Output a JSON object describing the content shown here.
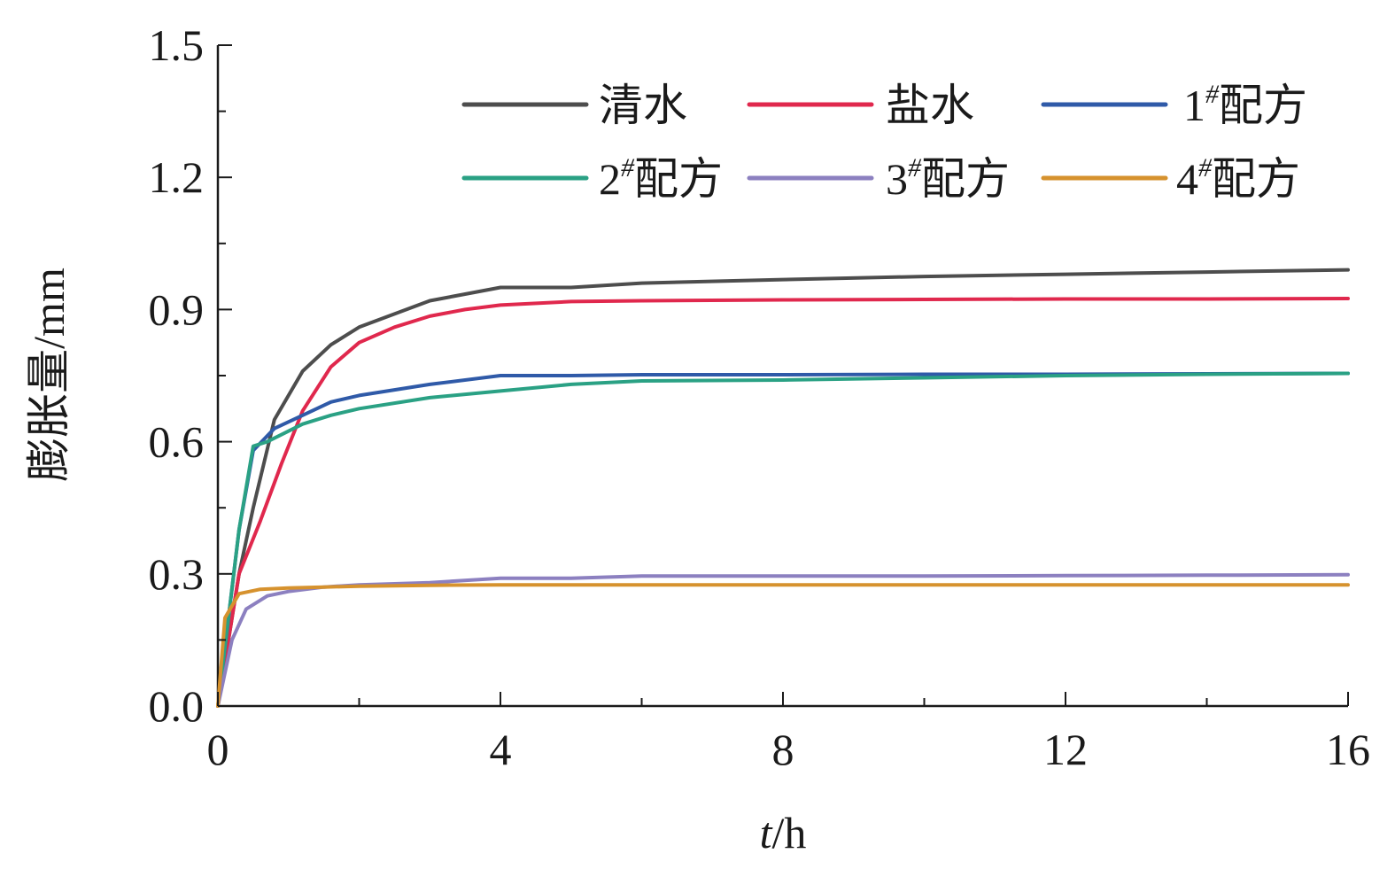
{
  "chart_data": {
    "type": "line",
    "xlabel": "h",
    "xlabel_italic_prefix": "t",
    "xlabel_sep": "/",
    "ylabel": "膨胀量/mm",
    "xlim": [
      0,
      16
    ],
    "ylim": [
      0,
      1.5
    ],
    "x_ticks": [
      "0",
      "4",
      "8",
      "12",
      "16"
    ],
    "y_ticks": [
      "0.0",
      "0.3",
      "0.6",
      "0.9",
      "1.2",
      "1.5"
    ],
    "grid": false,
    "legend_position": "top-right",
    "series": [
      {
        "name": "清水",
        "sup": "",
        "suffix": "",
        "color": "#4d4d4d",
        "points": [
          [
            0,
            0
          ],
          [
            0.3,
            0.3
          ],
          [
            0.5,
            0.45
          ],
          [
            0.8,
            0.65
          ],
          [
            1.2,
            0.76
          ],
          [
            1.6,
            0.82
          ],
          [
            2,
            0.86
          ],
          [
            2.5,
            0.89
          ],
          [
            3,
            0.92
          ],
          [
            3.5,
            0.935
          ],
          [
            4,
            0.95
          ],
          [
            5,
            0.95
          ],
          [
            6,
            0.96
          ],
          [
            8,
            0.968
          ],
          [
            10,
            0.975
          ],
          [
            12,
            0.98
          ],
          [
            14,
            0.985
          ],
          [
            16,
            0.99
          ]
        ]
      },
      {
        "name": "盐水",
        "sup": "",
        "suffix": "",
        "color": "#e0284d",
        "points": [
          [
            0,
            0
          ],
          [
            0.3,
            0.3
          ],
          [
            0.6,
            0.42
          ],
          [
            0.9,
            0.55
          ],
          [
            1.2,
            0.67
          ],
          [
            1.6,
            0.77
          ],
          [
            2,
            0.825
          ],
          [
            2.5,
            0.86
          ],
          [
            3,
            0.885
          ],
          [
            3.5,
            0.9
          ],
          [
            4,
            0.91
          ],
          [
            5,
            0.918
          ],
          [
            6,
            0.92
          ],
          [
            8,
            0.922
          ],
          [
            10,
            0.923
          ],
          [
            12,
            0.924
          ],
          [
            14,
            0.924
          ],
          [
            16,
            0.925
          ]
        ]
      },
      {
        "name": "1",
        "sup": "#",
        "suffix": "配方",
        "color": "#2f5aa8",
        "points": [
          [
            0,
            0
          ],
          [
            0.3,
            0.4
          ],
          [
            0.5,
            0.58
          ],
          [
            0.8,
            0.63
          ],
          [
            1.2,
            0.66
          ],
          [
            1.6,
            0.69
          ],
          [
            2,
            0.705
          ],
          [
            3,
            0.73
          ],
          [
            4,
            0.75
          ],
          [
            5,
            0.75
          ],
          [
            6,
            0.752
          ],
          [
            8,
            0.752
          ],
          [
            10,
            0.753
          ],
          [
            12,
            0.753
          ],
          [
            14,
            0.754
          ],
          [
            16,
            0.755
          ]
        ]
      },
      {
        "name": "2",
        "sup": "#",
        "suffix": "配方",
        "color": "#2aa184",
        "points": [
          [
            0,
            0
          ],
          [
            0.3,
            0.4
          ],
          [
            0.5,
            0.59
          ],
          [
            0.7,
            0.6
          ],
          [
            1.2,
            0.64
          ],
          [
            1.6,
            0.66
          ],
          [
            2,
            0.675
          ],
          [
            3,
            0.7
          ],
          [
            4,
            0.715
          ],
          [
            5,
            0.73
          ],
          [
            6,
            0.738
          ],
          [
            8,
            0.74
          ],
          [
            10,
            0.745
          ],
          [
            12,
            0.75
          ],
          [
            14,
            0.753
          ],
          [
            16,
            0.755
          ]
        ]
      },
      {
        "name": "3",
        "sup": "#",
        "suffix": "配方",
        "color": "#8c80c0",
        "points": [
          [
            0,
            0
          ],
          [
            0.2,
            0.15
          ],
          [
            0.4,
            0.22
          ],
          [
            0.7,
            0.25
          ],
          [
            1,
            0.26
          ],
          [
            1.5,
            0.27
          ],
          [
            2,
            0.275
          ],
          [
            3,
            0.28
          ],
          [
            4,
            0.29
          ],
          [
            5,
            0.29
          ],
          [
            6,
            0.295
          ],
          [
            8,
            0.295
          ],
          [
            10,
            0.295
          ],
          [
            12,
            0.296
          ],
          [
            14,
            0.297
          ],
          [
            16,
            0.298
          ]
        ]
      },
      {
        "name": "4",
        "sup": "#",
        "suffix": "配方",
        "color": "#d6922e",
        "points": [
          [
            0,
            0
          ],
          [
            0.1,
            0.2
          ],
          [
            0.3,
            0.255
          ],
          [
            0.6,
            0.265
          ],
          [
            1,
            0.268
          ],
          [
            1.5,
            0.27
          ],
          [
            2,
            0.272
          ],
          [
            3,
            0.274
          ],
          [
            4,
            0.275
          ],
          [
            6,
            0.275
          ],
          [
            8,
            0.275
          ],
          [
            10,
            0.275
          ],
          [
            12,
            0.275
          ],
          [
            14,
            0.275
          ],
          [
            16,
            0.275
          ]
        ]
      }
    ]
  }
}
